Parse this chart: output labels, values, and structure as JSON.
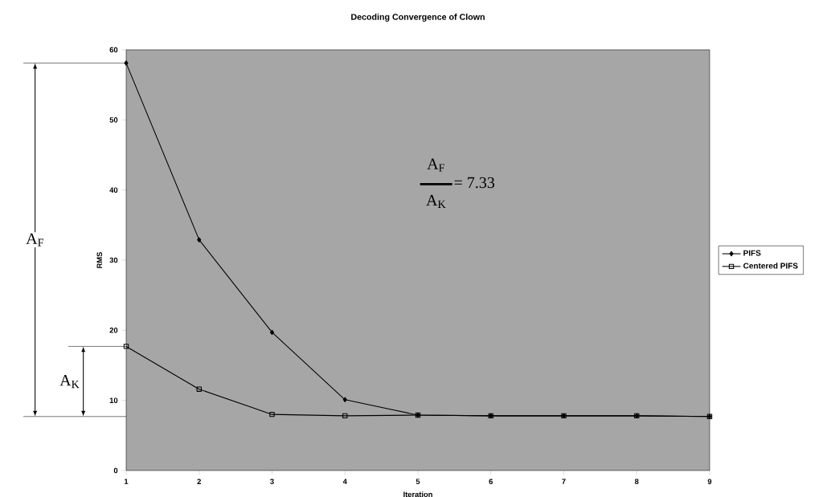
{
  "chart_data": {
    "type": "line",
    "title": "Decoding Convergence of Clown",
    "xlabel": "Iteration",
    "ylabel": "RMS",
    "x": [
      1,
      2,
      3,
      4,
      5,
      6,
      7,
      8,
      9
    ],
    "series": [
      {
        "name": "PIFS",
        "color": "#000000",
        "marker": "diamond",
        "values": [
          58.1,
          32.9,
          19.7,
          10.1,
          7.9,
          7.8,
          7.8,
          7.8,
          7.7
        ]
      },
      {
        "name": "Centered PIFS",
        "color": "#000000",
        "marker": "square",
        "values": [
          17.7,
          11.6,
          8.0,
          7.8,
          7.9,
          7.8,
          7.8,
          7.8,
          7.7
        ]
      }
    ],
    "xlim": [
      1,
      9
    ],
    "xticks": [
      1,
      2,
      3,
      4,
      5,
      6,
      7,
      8,
      9
    ],
    "ylim": [
      0,
      60
    ],
    "yticks": [
      0,
      10,
      20,
      30,
      40,
      50,
      60
    ],
    "grid": false,
    "legend": "right",
    "line_style": "solid",
    "annotations": [
      "A$_{F}$",
      "A$_{K}$",
      "A$_{F}$",
      "A$_{K}$",
      "= 7.33"
    ]
  }
}
